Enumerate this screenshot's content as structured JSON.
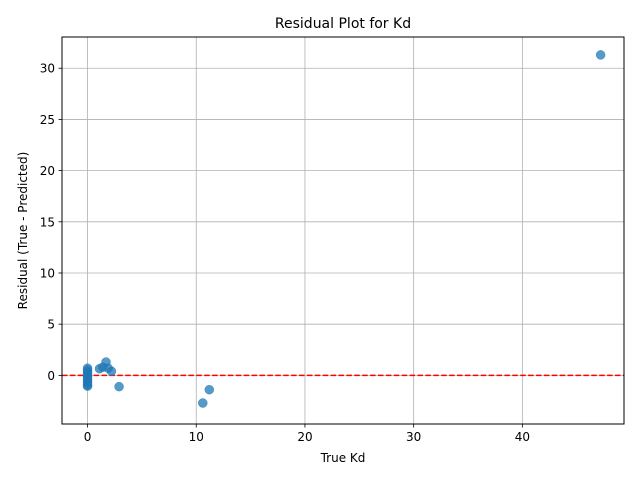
{
  "chart_data": {
    "type": "scatter",
    "title": "Residual Plot for Kd",
    "xlabel": "True Kd",
    "ylabel": "Residual (True - Predicted)",
    "xlim": [
      -2.35,
      49.35
    ],
    "ylim": [
      -4.75,
      33.05
    ],
    "xticks": [
      0,
      10,
      20,
      30,
      40
    ],
    "yticks": [
      0,
      5,
      10,
      15,
      20,
      25,
      30
    ],
    "grid": true,
    "marker_color": "#1f77b4",
    "marker_alpha": 0.75,
    "reference_line": {
      "y": 0,
      "color": "#ff0000",
      "style": "dashed"
    },
    "points": [
      {
        "x": 0.0,
        "y": 0.7
      },
      {
        "x": 0.0,
        "y": 0.5
      },
      {
        "x": 0.0,
        "y": 0.3
      },
      {
        "x": 0.0,
        "y": 0.1
      },
      {
        "x": 0.0,
        "y": -0.1
      },
      {
        "x": 0.0,
        "y": -0.3
      },
      {
        "x": 0.0,
        "y": -0.5
      },
      {
        "x": 0.0,
        "y": -0.7
      },
      {
        "x": 0.0,
        "y": -0.95
      },
      {
        "x": 0.0,
        "y": -1.05
      },
      {
        "x": 1.1,
        "y": 0.65
      },
      {
        "x": 1.4,
        "y": 0.8
      },
      {
        "x": 1.7,
        "y": 1.3
      },
      {
        "x": 1.9,
        "y": 0.7
      },
      {
        "x": 2.2,
        "y": 0.4
      },
      {
        "x": 2.9,
        "y": -1.1
      },
      {
        "x": 10.6,
        "y": -2.7
      },
      {
        "x": 11.2,
        "y": -1.4
      },
      {
        "x": 47.2,
        "y": 31.3
      }
    ]
  }
}
